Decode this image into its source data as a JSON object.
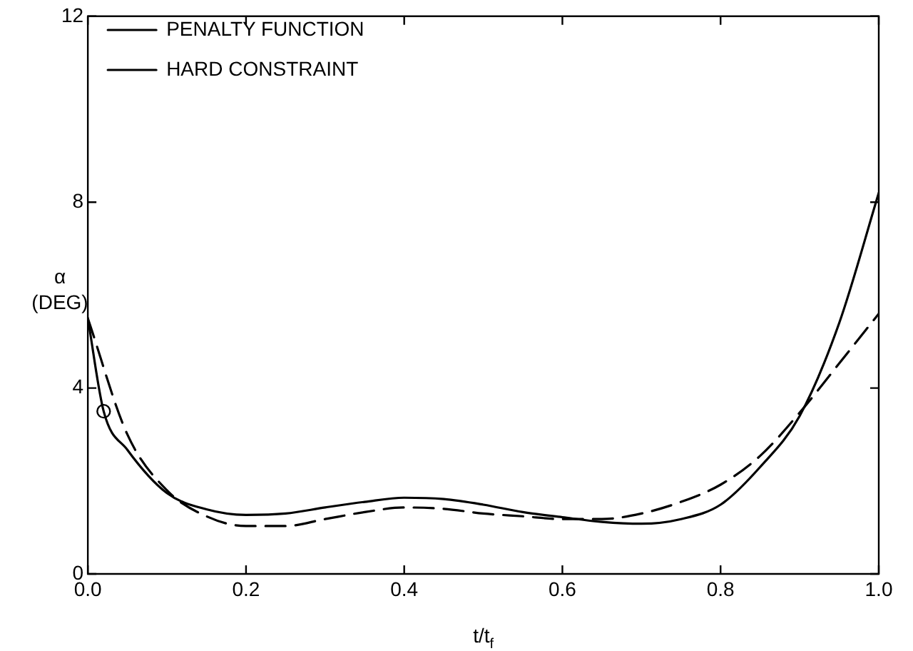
{
  "chart_data": {
    "type": "line",
    "xlabel": "t/t$_{f}$",
    "ylabel": "α (DEG)",
    "x": [
      0,
      0.05,
      0.1,
      0.15,
      0.2,
      0.25,
      0.3,
      0.35,
      0.4,
      0.45,
      0.5,
      0.55,
      0.6,
      0.65,
      0.7,
      0.75,
      0.8,
      0.85,
      0.9,
      0.95,
      1.0
    ],
    "xlim": [
      0,
      1
    ],
    "xticks": [
      {
        "value": 0,
        "label": "0.0"
      },
      {
        "value": 0.2,
        "label": "0.2"
      },
      {
        "value": 0.4,
        "label": "0.4"
      },
      {
        "value": 0.6,
        "label": "0.6"
      },
      {
        "value": 0.8,
        "label": "0.8"
      },
      {
        "value": 1,
        "label": "1.0"
      }
    ],
    "ylim": [
      0,
      12
    ],
    "yticks": [
      0,
      4,
      8,
      12
    ],
    "grid": false,
    "legend": "top left",
    "series": [
      {
        "name": "PENALTY FUNCTION",
        "color": "#000000",
        "line_style": "dashed",
        "marker": "none",
        "values": [
          5.5,
          3.0,
          1.8,
          1.24,
          1.03,
          1.03,
          1.18,
          1.33,
          1.43,
          1.4,
          1.3,
          1.24,
          1.18,
          1.18,
          1.3,
          1.55,
          1.92,
          2.54,
          3.47,
          4.53,
          5.6
        ]
      },
      {
        "name": "HARD CONSTRAINT",
        "color": "#000000",
        "line_style": "solid",
        "marker": "none",
        "x": [
          0,
          0.02,
          0.05,
          0.1,
          0.15,
          0.2,
          0.25,
          0.3,
          0.35,
          0.4,
          0.45,
          0.5,
          0.55,
          0.6,
          0.65,
          0.7,
          0.75,
          0.8,
          0.85,
          0.9,
          0.95,
          1.0
        ],
        "values": [
          5.5,
          3.5,
          2.67,
          1.74,
          1.39,
          1.27,
          1.3,
          1.43,
          1.55,
          1.64,
          1.61,
          1.49,
          1.33,
          1.22,
          1.12,
          1.08,
          1.18,
          1.49,
          2.3,
          3.4,
          5.4,
          8.2
        ]
      },
      {
        "type": "scatter",
        "color": "#000000",
        "marker": "circle",
        "x": [
          0.02
        ],
        "values": [
          3.5
        ]
      }
    ]
  }
}
